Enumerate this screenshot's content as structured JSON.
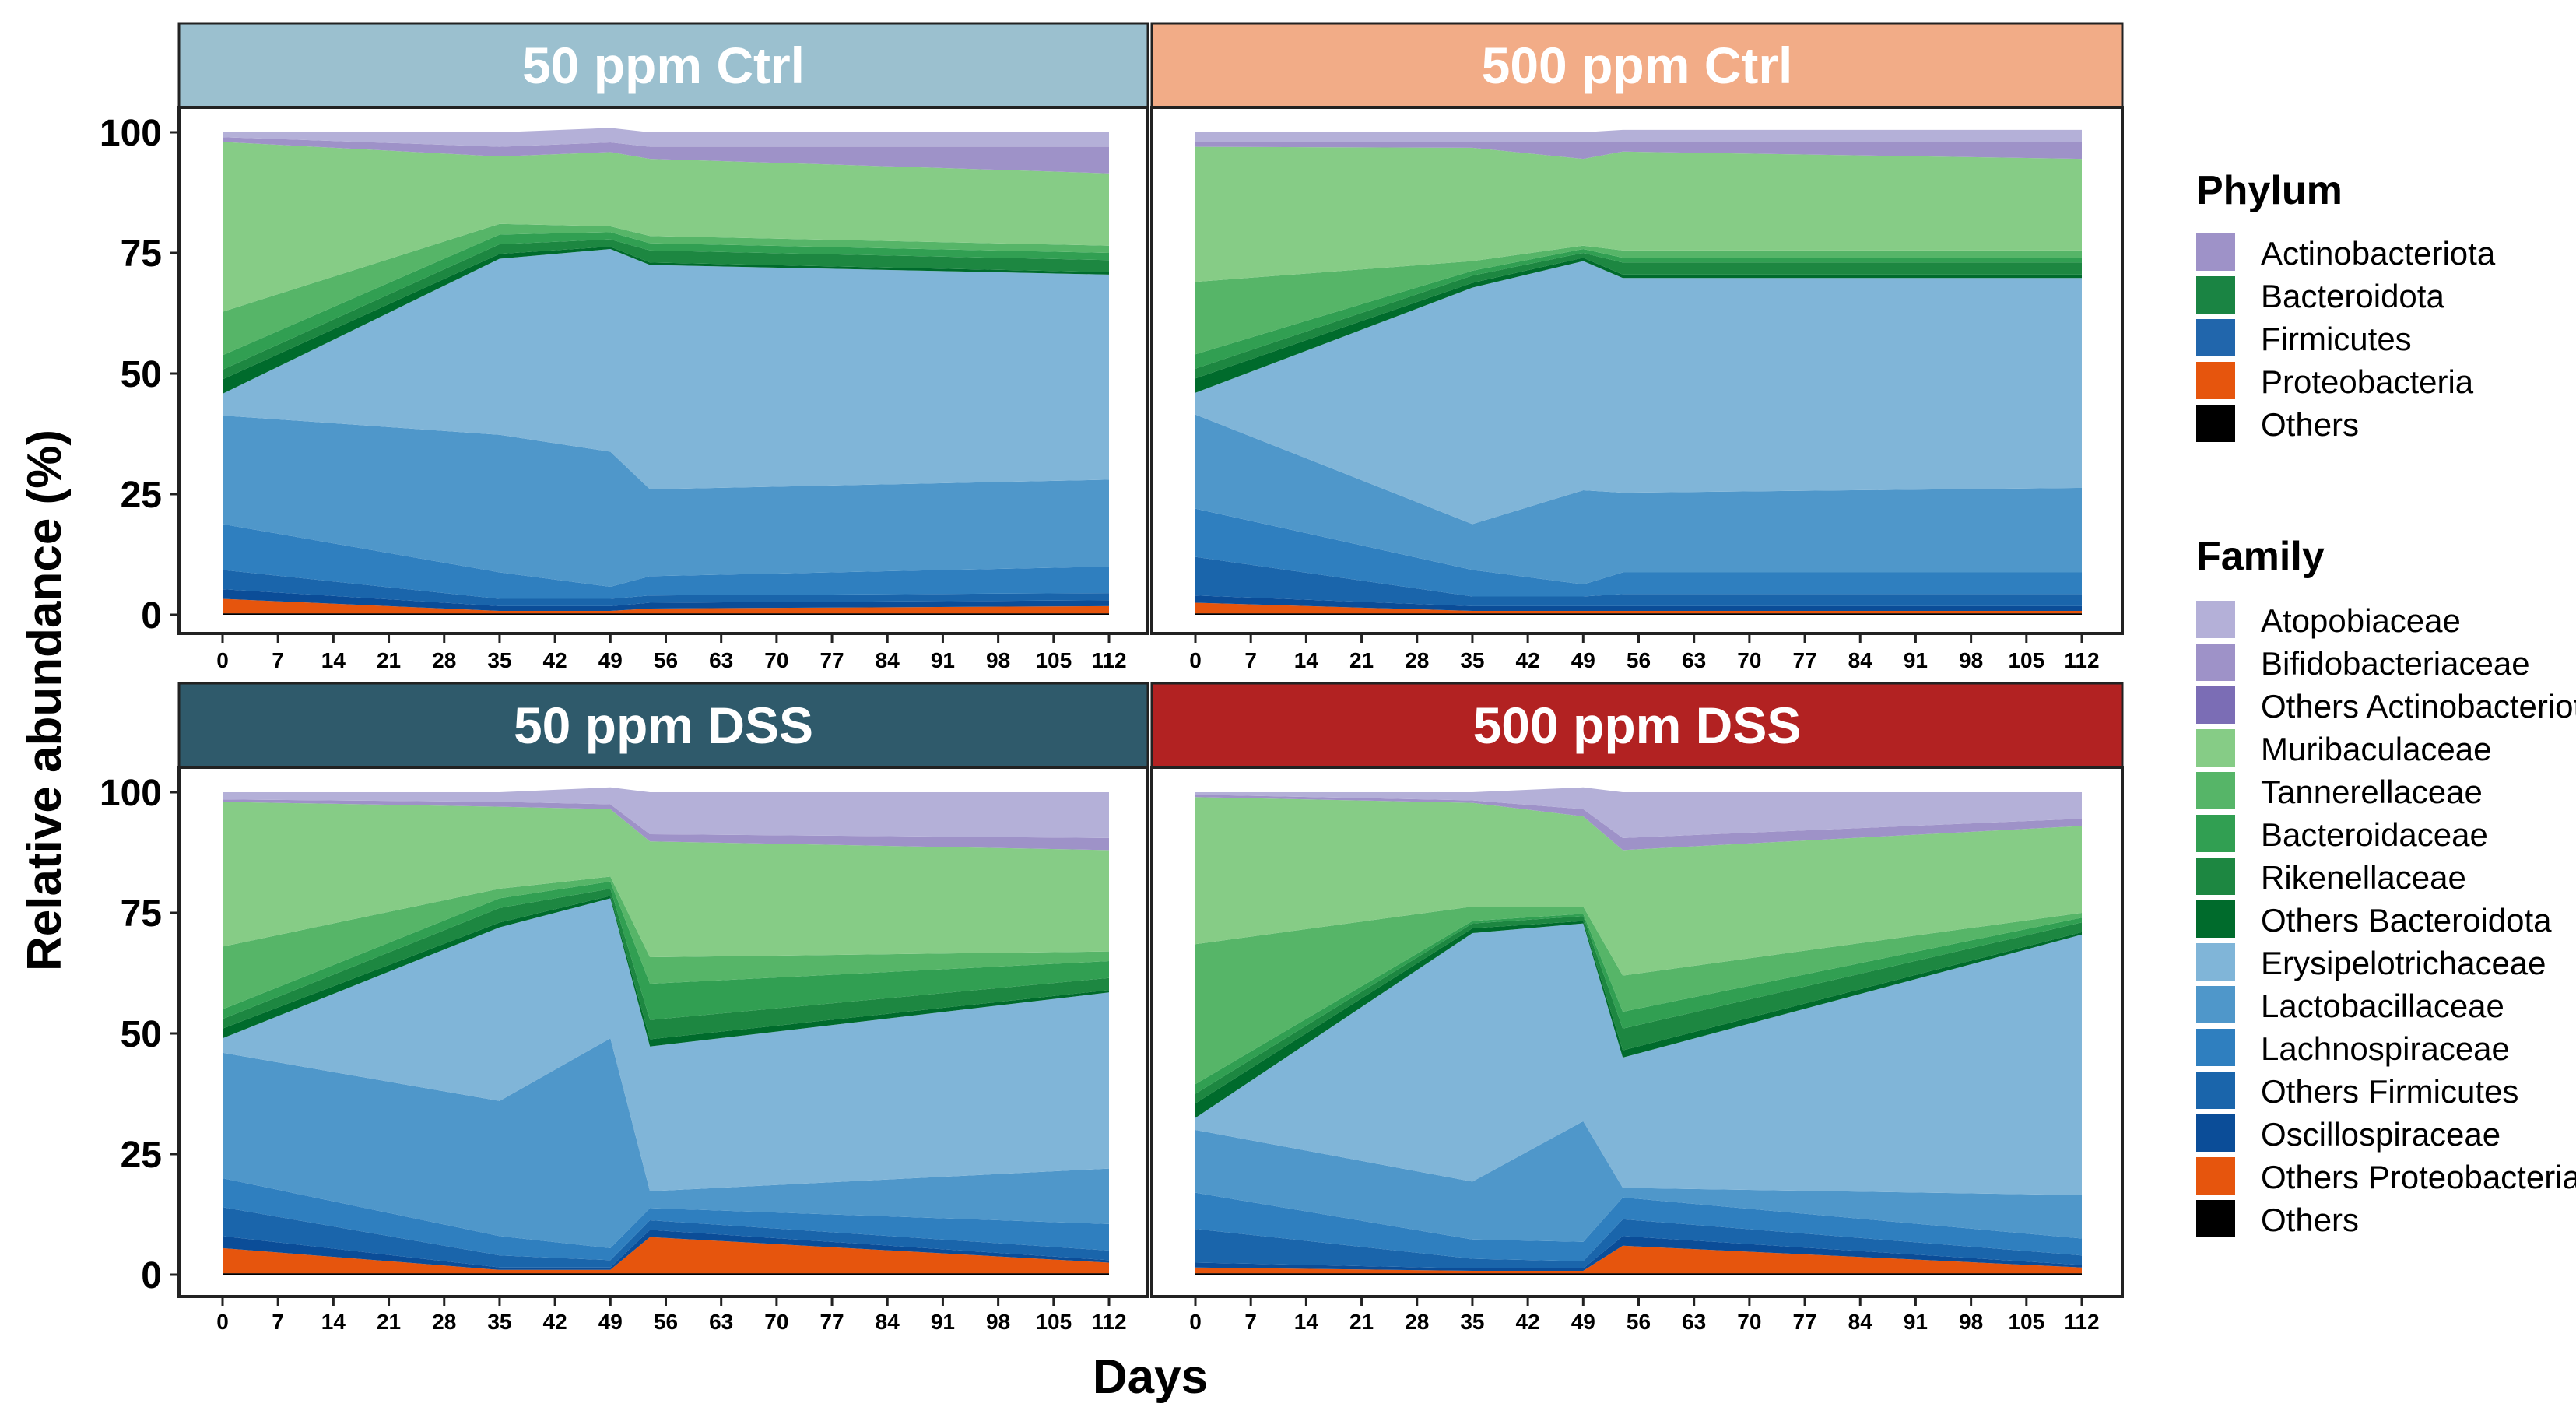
{
  "chart_data": {
    "type": "area",
    "stacked": true,
    "xlabel": "Days",
    "ylabel": "Relative abundance (%)",
    "ylim": [
      0,
      100
    ],
    "yticks": [
      0,
      25,
      50,
      75,
      100
    ],
    "xticks": [
      0,
      7,
      14,
      21,
      28,
      35,
      42,
      49,
      56,
      63,
      70,
      77,
      84,
      91,
      98,
      105,
      112
    ],
    "facets": [
      {
        "title": "50 ppm Ctrl",
        "strip_color": "#9bc0cf",
        "x": [
          0,
          35,
          49,
          54,
          112
        ],
        "layers": [
          {
            "name": "Others",
            "values": [
              0.3,
              0.3,
              0.3,
              0.3,
              0.3
            ]
          },
          {
            "name": "Others Proteobacteria",
            "values": [
              3.0,
              0.5,
              0.5,
              1.0,
              1.5
            ]
          },
          {
            "name": "Oscillospiraceae",
            "values": [
              2.0,
              1.0,
              1.0,
              1.2,
              1.2
            ]
          },
          {
            "name": "Others Firmicutes",
            "values": [
              4.0,
              1.5,
              1.5,
              1.5,
              1.5
            ]
          },
          {
            "name": "Lachnospiraceae",
            "values": [
              9.5,
              5.5,
              2.5,
              4.0,
              5.5
            ]
          },
          {
            "name": "Lactobacillaceae",
            "values": [
              22.5,
              28.5,
              28.0,
              18.0,
              18.0
            ]
          },
          {
            "name": "Erysipelotrichaceae",
            "values": [
              4.5,
              36.5,
              42.0,
              46.5,
              42.5
            ]
          },
          {
            "name": "Others Bacteroidota",
            "values": [
              3.0,
              1.0,
              0.5,
              0.5,
              0.5
            ]
          },
          {
            "name": "Rikenellaceae",
            "values": [
              2.0,
              2.0,
              1.5,
              2.5,
              2.5
            ]
          },
          {
            "name": "Bacteroidaceae",
            "values": [
              3.0,
              2.0,
              1.5,
              1.5,
              1.5
            ]
          },
          {
            "name": "Tannerellaceae",
            "values": [
              9.0,
              2.2,
              1.2,
              1.5,
              1.5
            ]
          },
          {
            "name": "Muribaculaceae",
            "values": [
              35.2,
              14.0,
              15.4,
              16.0,
              15.0
            ]
          },
          {
            "name": "Others Actinobacteriota",
            "values": [
              0.0,
              0.0,
              0.0,
              0.0,
              0.0
            ]
          },
          {
            "name": "Bifidobacteriaceae",
            "values": [
              1.0,
              2.0,
              2.0,
              2.5,
              5.5
            ]
          },
          {
            "name": "Atopobiaceae",
            "values": [
              1.0,
              3.0,
              3.0,
              3.0,
              3.0
            ]
          }
        ]
      },
      {
        "title": "500 ppm Ctrl",
        "strip_color": "#f2ac87",
        "x": [
          0,
          35,
          49,
          54,
          112
        ],
        "layers": [
          {
            "name": "Others",
            "values": [
              0.3,
              0.3,
              0.3,
              0.3,
              0.3
            ]
          },
          {
            "name": "Others Proteobacteria",
            "values": [
              2.2,
              0.5,
              0.5,
              0.5,
              0.5
            ]
          },
          {
            "name": "Oscillospiraceae",
            "values": [
              1.5,
              1.0,
              1.0,
              1.0,
              1.0
            ]
          },
          {
            "name": "Others Firmicutes",
            "values": [
              8.0,
              2.0,
              2.0,
              2.5,
              2.5
            ]
          },
          {
            "name": "Lachnospiraceae",
            "values": [
              10.0,
              5.5,
              2.5,
              4.5,
              4.5
            ]
          },
          {
            "name": "Lactobacillaceae",
            "values": [
              19.5,
              9.5,
              19.5,
              16.5,
              17.5
            ]
          },
          {
            "name": "Erysipelotrichaceae",
            "values": [
              4.5,
              49.0,
              47.5,
              44.5,
              43.5
            ]
          },
          {
            "name": "Others Bacteroidota",
            "values": [
              3.0,
              1.0,
              0.7,
              0.7,
              0.7
            ]
          },
          {
            "name": "Rikenellaceae",
            "values": [
              2.0,
              1.5,
              1.0,
              2.5,
              2.5
            ]
          },
          {
            "name": "Bacteroidaceae",
            "values": [
              3.0,
              1.0,
              0.8,
              1.0,
              1.0
            ]
          },
          {
            "name": "Tannerellaceae",
            "values": [
              15.0,
              2.0,
              0.7,
              1.5,
              1.5
            ]
          },
          {
            "name": "Muribaculaceae",
            "values": [
              28.0,
              23.5,
              18.0,
              20.5,
              19.0
            ]
          },
          {
            "name": "Others Actinobacteriota",
            "values": [
              0.0,
              0.0,
              0.0,
              0.0,
              0.0
            ]
          },
          {
            "name": "Bifidobacteriaceae",
            "values": [
              1.0,
              1.2,
              3.5,
              2.0,
              3.5
            ]
          },
          {
            "name": "Atopobiaceae",
            "values": [
              2.0,
              2.0,
              2.0,
              2.5,
              2.5
            ]
          }
        ]
      },
      {
        "title": "50 ppm DSS",
        "strip_color": "#2f5a6b",
        "x": [
          0,
          35,
          49,
          54,
          112
        ],
        "layers": [
          {
            "name": "Others",
            "values": [
              0.3,
              0.3,
              0.3,
              0.3,
              0.3
            ]
          },
          {
            "name": "Others Proteobacteria",
            "values": [
              5.2,
              0.7,
              0.7,
              7.5,
              2.2
            ]
          },
          {
            "name": "Oscillospiraceae",
            "values": [
              2.5,
              0.5,
              0.5,
              1.5,
              0.5
            ]
          },
          {
            "name": "Others Firmicutes",
            "values": [
              6.0,
              2.5,
              1.5,
              2.0,
              2.0
            ]
          },
          {
            "name": "Lachnospiraceae",
            "values": [
              6.0,
              4.0,
              2.5,
              2.5,
              5.5
            ]
          },
          {
            "name": "Lactobacillaceae",
            "values": [
              26.0,
              28.0,
              43.5,
              3.5,
              11.5
            ]
          },
          {
            "name": "Erysipelotrichaceae",
            "values": [
              3.0,
              36.0,
              29.0,
              30.0,
              36.5
            ]
          },
          {
            "name": "Others Bacteroidota",
            "values": [
              2.0,
              1.0,
              0.5,
              1.5,
              0.5
            ]
          },
          {
            "name": "Rikenellaceae",
            "values": [
              2.0,
              3.0,
              1.5,
              4.0,
              2.5
            ]
          },
          {
            "name": "Bacteroidaceae",
            "values": [
              2.0,
              2.0,
              1.5,
              7.5,
              3.5
            ]
          },
          {
            "name": "Tannerellaceae",
            "values": [
              13.0,
              2.0,
              1.0,
              5.5,
              2.0
            ]
          },
          {
            "name": "Muribaculaceae",
            "values": [
              30.0,
              17.0,
              14.0,
              24.0,
              21.0
            ]
          },
          {
            "name": "Others Actinobacteriota",
            "values": [
              0.0,
              0.0,
              0.0,
              0.0,
              0.0
            ]
          },
          {
            "name": "Bifidobacteriaceae",
            "values": [
              0.5,
              1.0,
              1.0,
              1.5,
              2.5
            ]
          },
          {
            "name": "Atopobiaceae",
            "values": [
              1.5,
              2.0,
              3.5,
              8.7,
              9.5
            ]
          }
        ]
      },
      {
        "title": "500 ppm DSS",
        "strip_color": "#b22222",
        "x": [
          0,
          35,
          49,
          54,
          112
        ],
        "layers": [
          {
            "name": "Others",
            "values": [
              0.3,
              0.3,
              0.3,
              0.3,
              0.3
            ]
          },
          {
            "name": "Others Proteobacteria",
            "values": [
              1.2,
              0.5,
              0.5,
              5.7,
              1.2
            ]
          },
          {
            "name": "Oscillospiraceae",
            "values": [
              1.0,
              0.5,
              0.5,
              2.0,
              0.5
            ]
          },
          {
            "name": "Others Firmicutes",
            "values": [
              7.0,
              2.0,
              1.5,
              3.5,
              2.0
            ]
          },
          {
            "name": "Lachnospiraceae",
            "values": [
              7.5,
              4.0,
              4.0,
              4.5,
              3.5
            ]
          },
          {
            "name": "Lactobacillaceae",
            "values": [
              13.0,
              12.0,
              25.0,
              2.0,
              9.0
            ]
          },
          {
            "name": "Erysipelotrichaceae",
            "values": [
              2.5,
              51.5,
              41.0,
              27.0,
              54.0
            ]
          },
          {
            "name": "Others Bacteroidota",
            "values": [
              3.0,
              1.0,
              0.5,
              1.5,
              0.5
            ]
          },
          {
            "name": "Rikenellaceae",
            "values": [
              2.0,
              1.0,
              1.0,
              4.5,
              2.0
            ]
          },
          {
            "name": "Bacteroidaceae",
            "values": [
              2.0,
              0.5,
              0.5,
              3.5,
              1.0
            ]
          },
          {
            "name": "Tannerellaceae",
            "values": [
              29.0,
              3.0,
              1.5,
              7.5,
              1.0
            ]
          },
          {
            "name": "Muribaculaceae",
            "values": [
              30.5,
              21.5,
              18.7,
              26.0,
              18.0
            ]
          },
          {
            "name": "Others Actinobacteriota",
            "values": [
              0.0,
              0.0,
              0.0,
              0.0,
              0.0
            ]
          },
          {
            "name": "Bifidobacteriaceae",
            "values": [
              0.5,
              0.5,
              1.5,
              2.5,
              1.5
            ]
          },
          {
            "name": "Atopobiaceae",
            "values": [
              0.5,
              1.7,
              4.5,
              9.5,
              5.5
            ]
          }
        ]
      }
    ],
    "legend": {
      "phylum": {
        "title": "Phylum",
        "items": [
          {
            "label": "Actinobacteriota",
            "color": "#9e92c8"
          },
          {
            "label": "Bacteroidota",
            "color": "#1a8443"
          },
          {
            "label": "Firmicutes",
            "color": "#2166ac"
          },
          {
            "label": "Proteobacteria",
            "color": "#e6550d"
          },
          {
            "label": "Others",
            "color": "#000000"
          }
        ]
      },
      "family": {
        "title": "Family",
        "items": [
          {
            "label": "Atopobiaceae",
            "color": "#b4b0d8"
          },
          {
            "label": "Bifidobacteriaceae",
            "color": "#9e92c8"
          },
          {
            "label": "Others Actinobacteriota",
            "color": "#7b6db5"
          },
          {
            "label": "Muribaculaceae",
            "color": "#86cc86"
          },
          {
            "label": "Tannerellaceae",
            "color": "#56b568"
          },
          {
            "label": "Bacteroidaceae",
            "color": "#319f52"
          },
          {
            "label": "Rikenellaceae",
            "color": "#1d8741"
          },
          {
            "label": "Others Bacteroidota",
            "color": "#006b2c"
          },
          {
            "label": "Erysipelotrichaceae",
            "color": "#80b5d8"
          },
          {
            "label": "Lactobacillaceae",
            "color": "#4f97ca"
          },
          {
            "label": "Lachnospiraceae",
            "color": "#2f7fbf"
          },
          {
            "label": "Others Firmicutes",
            "color": "#1a65ab"
          },
          {
            "label": "Oscillospiraceae",
            "color": "#0b4d98"
          },
          {
            "label": "Others Proteobacteria",
            "color": "#e6550d"
          },
          {
            "label": "Others",
            "color": "#000000"
          }
        ]
      }
    }
  }
}
